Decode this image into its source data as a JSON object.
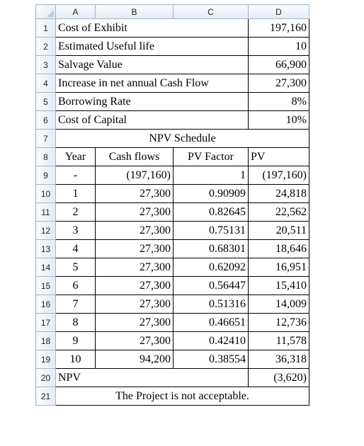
{
  "columns": [
    "A",
    "B",
    "C",
    "D"
  ],
  "rows": [
    {
      "num": "1",
      "label": "Cost of Exhibit",
      "value": "197,160"
    },
    {
      "num": "2",
      "label": "Estimated Useful life",
      "value": "10"
    },
    {
      "num": "3",
      "label": "Salvage Value",
      "value": "66,900"
    },
    {
      "num": "4",
      "label": "Increase in net annual Cash Flow",
      "value": "27,300"
    },
    {
      "num": "5",
      "label": "Borrowing Rate",
      "value": "8%"
    },
    {
      "num": "6",
      "label": "Cost of Capital",
      "value": "10%"
    }
  ],
  "schedule": {
    "row_num": "7",
    "title": "NPV Schedule",
    "header_row_num": "8",
    "headers": [
      "Year",
      "Cash flows",
      "PV Factor",
      "PV"
    ],
    "lines": [
      {
        "num": "9",
        "year": "-",
        "cash": "(197,160)",
        "factor": "1",
        "pv": "(197,160)"
      },
      {
        "num": "10",
        "year": "1",
        "cash": "27,300",
        "factor": "0.90909",
        "pv": "24,818"
      },
      {
        "num": "11",
        "year": "2",
        "cash": "27,300",
        "factor": "0.82645",
        "pv": "22,562"
      },
      {
        "num": "12",
        "year": "3",
        "cash": "27,300",
        "factor": "0.75131",
        "pv": "20,511"
      },
      {
        "num": "13",
        "year": "4",
        "cash": "27,300",
        "factor": "0.68301",
        "pv": "18,646"
      },
      {
        "num": "14",
        "year": "5",
        "cash": "27,300",
        "factor": "0.62092",
        "pv": "16,951"
      },
      {
        "num": "15",
        "year": "6",
        "cash": "27,300",
        "factor": "0.56447",
        "pv": "15,410"
      },
      {
        "num": "16",
        "year": "7",
        "cash": "27,300",
        "factor": "0.51316",
        "pv": "14,009"
      },
      {
        "num": "17",
        "year": "8",
        "cash": "27,300",
        "factor": "0.46651",
        "pv": "12,736"
      },
      {
        "num": "18",
        "year": "9",
        "cash": "27,300",
        "factor": "0.42410",
        "pv": "11,578"
      },
      {
        "num": "19",
        "year": "10",
        "cash": "94,200",
        "factor": "0.38554",
        "pv": "36,318"
      }
    ]
  },
  "npv": {
    "num": "20",
    "label": "NPV",
    "value": "(3,620)"
  },
  "conclusion": {
    "num": "21",
    "text": "The Project is not acceptable."
  }
}
